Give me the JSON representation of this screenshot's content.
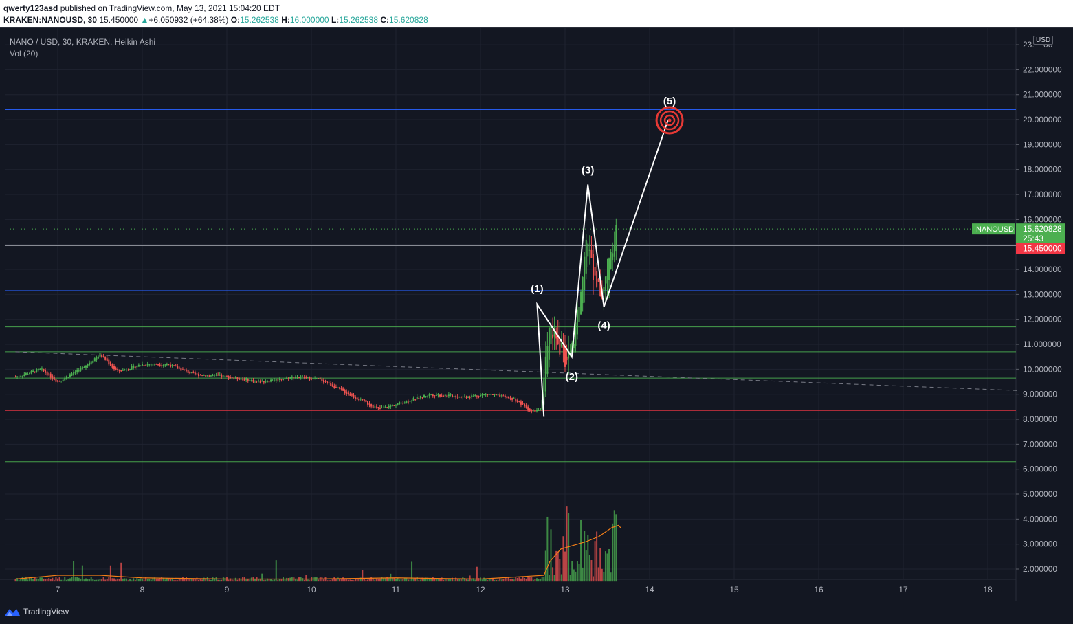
{
  "header": {
    "user": "qwerty123asd",
    "published_text": "published on TradingView.com, May 13, 2021 15:04:20 EDT",
    "symbol_line": "KRAKEN:NANOUSD, 30",
    "price": "15.450000",
    "change_arrow": "▲",
    "change": "+6.050932 (+64.38%)",
    "o_label": "O:",
    "o_value": "15.262538",
    "h_label": "H:",
    "h_value": "16.000000",
    "l_label": "L:",
    "l_value": "15.262538",
    "c_label": "C:",
    "c_value": "15.620828"
  },
  "legend": {
    "series_title": "NANO / USD, 30, KRAKEN, Heikin Ashi",
    "volume_title": "Vol (20)"
  },
  "footer": {
    "brand": "TradingView",
    "logo_icon": "tradingview-logo-icon"
  },
  "axis": {
    "currency_badge": "USD",
    "price_ticks": [
      "2.000000",
      "3.000000",
      "4.000000",
      "5.000000",
      "6.000000",
      "7.000000",
      "8.000000",
      "9.000000",
      "10.000000",
      "11.000000",
      "12.000000",
      "13.000000",
      "14.000000",
      "15.000000",
      "16.000000",
      "17.000000",
      "18.000000",
      "19.000000",
      "20.000000",
      "21.000000",
      "22.000000",
      "23.000000"
    ],
    "top_tick_partial": "23.    00",
    "date_ticks": [
      "7",
      "8",
      "9",
      "10",
      "11",
      "12",
      "13",
      "14",
      "15",
      "16",
      "17",
      "18"
    ]
  },
  "price_labels": {
    "symbol_tag": "NANOUSD",
    "last_price": "15.620828",
    "countdown": "25:43",
    "close_price": "15.450000"
  },
  "colors": {
    "background": "#131722",
    "up": "#4caf50",
    "down": "#ef5350",
    "blue_line": "#2962ff",
    "green_line": "#4caf50",
    "red_line": "#f23645",
    "ma_line": "#f57f17",
    "wave_line": "#ffffff",
    "target": "#e53935"
  },
  "chart_data": {
    "type": "candlestick",
    "title": "NANO / USD, 30, KRAKEN, Heikin Ashi",
    "xlabel": "",
    "ylabel": "",
    "x_range": [
      6.5,
      18.35
    ],
    "ylim": [
      1.5,
      23.5
    ],
    "grid": true,
    "price_series_keypoints": [
      [
        6.5,
        9.7
      ],
      [
        6.8,
        10.0
      ],
      [
        7.0,
        9.5
      ],
      [
        7.3,
        10.1
      ],
      [
        7.5,
        10.6
      ],
      [
        7.7,
        9.9
      ],
      [
        8.0,
        10.2
      ],
      [
        8.3,
        10.2
      ],
      [
        8.6,
        9.8
      ],
      [
        9.0,
        9.7
      ],
      [
        9.4,
        9.5
      ],
      [
        9.8,
        9.7
      ],
      [
        10.1,
        9.6
      ],
      [
        10.5,
        8.9
      ],
      [
        10.8,
        8.4
      ],
      [
        11.1,
        8.7
      ],
      [
        11.4,
        9.0
      ],
      [
        11.8,
        8.9
      ],
      [
        12.1,
        9.0
      ],
      [
        12.4,
        8.8
      ],
      [
        12.6,
        8.3
      ],
      [
        12.72,
        8.4
      ],
      [
        12.78,
        10.5
      ],
      [
        12.82,
        12.2
      ],
      [
        12.9,
        11.0
      ],
      [
        13.0,
        10.5
      ],
      [
        13.1,
        11.2
      ],
      [
        13.18,
        13.0
      ],
      [
        13.25,
        15.5
      ],
      [
        13.3,
        14.3
      ],
      [
        13.38,
        13.5
      ],
      [
        13.45,
        12.9
      ],
      [
        13.52,
        14.5
      ],
      [
        13.6,
        15.62
      ]
    ],
    "horizontal_levels": [
      {
        "price": 20.4,
        "color": "blue"
      },
      {
        "price": 14.95,
        "color": "grey"
      },
      {
        "price": 13.15,
        "color": "blue"
      },
      {
        "price": 11.7,
        "color": "green"
      },
      {
        "price": 10.7,
        "color": "green"
      },
      {
        "price": 9.65,
        "color": "green"
      },
      {
        "price": 8.35,
        "color": "red"
      },
      {
        "price": 6.3,
        "color": "green"
      }
    ],
    "trendline": {
      "from": [
        6.5,
        10.7
      ],
      "to": [
        18.35,
        9.15
      ],
      "style": "dashed"
    },
    "elliott_wave": [
      {
        "label": "",
        "x": 12.75,
        "y": 8.1
      },
      {
        "label": "(1)",
        "x": 12.67,
        "y": 12.6
      },
      {
        "label": "(2)",
        "x": 13.08,
        "y": 10.5
      },
      {
        "label": "(3)",
        "x": 13.27,
        "y": 17.4
      },
      {
        "label": "(4)",
        "x": 13.46,
        "y": 12.5
      },
      {
        "label": "(5)",
        "x": 14.22,
        "y": 20.0
      }
    ],
    "volume_ma_keypoints": [
      [
        6.5,
        1.6
      ],
      [
        7.0,
        1.75
      ],
      [
        7.5,
        1.75
      ],
      [
        8.0,
        1.65
      ],
      [
        9.0,
        1.6
      ],
      [
        10.0,
        1.6
      ],
      [
        11.0,
        1.65
      ],
      [
        12.0,
        1.6
      ],
      [
        12.75,
        1.75
      ],
      [
        12.82,
        2.3
      ],
      [
        12.95,
        2.8
      ],
      [
        13.1,
        2.95
      ],
      [
        13.25,
        3.1
      ],
      [
        13.4,
        3.3
      ],
      [
        13.55,
        3.65
      ],
      [
        13.63,
        3.75
      ],
      [
        13.66,
        3.65
      ]
    ]
  }
}
